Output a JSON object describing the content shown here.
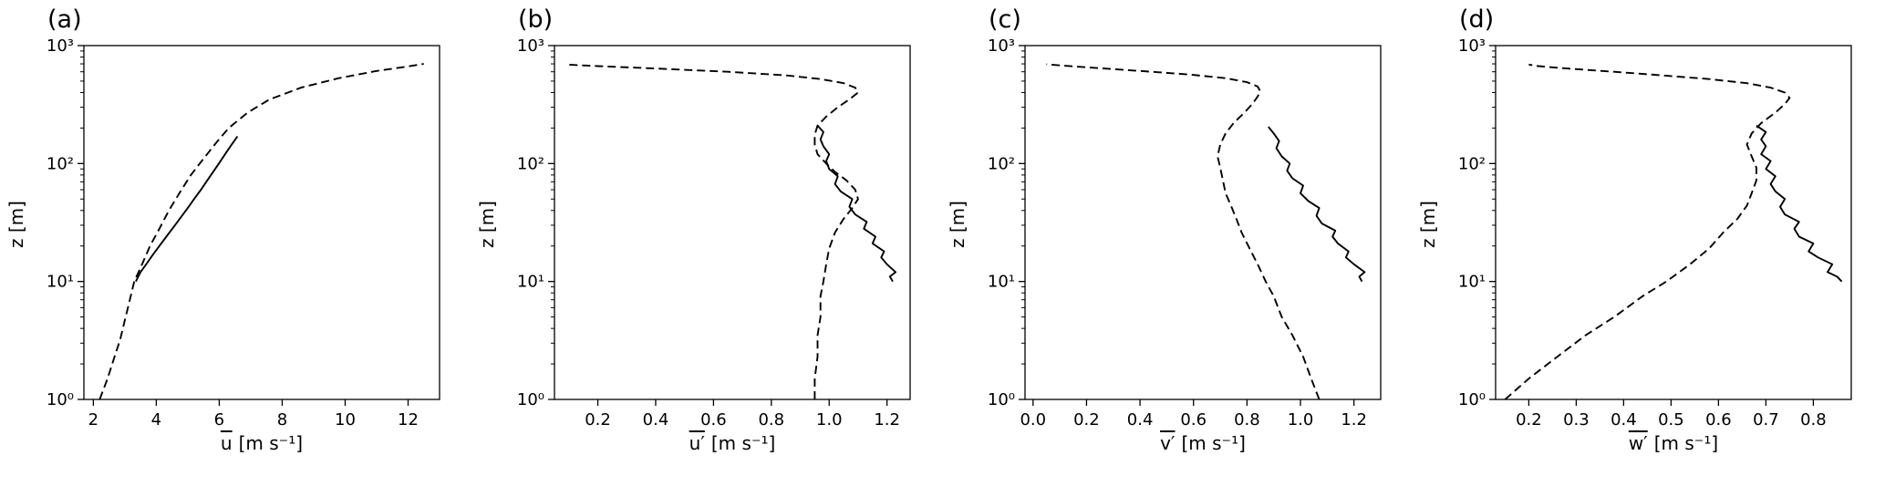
{
  "figure": {
    "background": "#ffffff",
    "line_color": "#000000",
    "description_series": [
      "dashed-profile",
      "solid-profile"
    ]
  },
  "chart_data": [
    {
      "type": "line",
      "panel_label": "(a)",
      "xlabel_var": "u",
      "xlabel_units": "[m s⁻¹]",
      "ylabel": "z [m]",
      "xlim": [
        1.7,
        13.0
      ],
      "ylog": true,
      "ylim": [
        1,
        1000
      ],
      "xticks": {
        "values": [
          2,
          4,
          6,
          8,
          10,
          12
        ],
        "labels": [
          "2",
          "4",
          "6",
          "8",
          "10",
          "12"
        ]
      },
      "yticks": {
        "values": [
          1,
          10,
          100,
          1000
        ],
        "labels": [
          "10⁰",
          "10¹",
          "10²",
          "10³"
        ]
      },
      "series": [
        {
          "name": "dashed-profile",
          "style": "dashed",
          "points": [
            [
              2.2,
              1
            ],
            [
              2.45,
              1.5
            ],
            [
              2.65,
              2.2
            ],
            [
              2.85,
              3.2
            ],
            [
              3.0,
              4.7
            ],
            [
              3.15,
              6.8
            ],
            [
              3.3,
              10
            ],
            [
              3.55,
              14
            ],
            [
              3.8,
              20
            ],
            [
              4.1,
              28
            ],
            [
              4.4,
              40
            ],
            [
              4.75,
              57
            ],
            [
              5.1,
              80
            ],
            [
              5.5,
              110
            ],
            [
              5.9,
              150
            ],
            [
              6.3,
              200
            ],
            [
              6.9,
              270
            ],
            [
              7.6,
              350
            ],
            [
              8.6,
              440
            ],
            [
              9.8,
              530
            ],
            [
              11.0,
              610
            ],
            [
              12.0,
              665
            ],
            [
              12.5,
              700
            ]
          ]
        },
        {
          "name": "solid-profile",
          "style": "solid",
          "points": [
            [
              3.35,
              10
            ],
            [
              3.5,
              12
            ],
            [
              3.68,
              14
            ],
            [
              3.9,
              17
            ],
            [
              4.1,
              20
            ],
            [
              4.32,
              24
            ],
            [
              4.55,
              29
            ],
            [
              4.78,
              35
            ],
            [
              5.0,
              42
            ],
            [
              5.2,
              50
            ],
            [
              5.42,
              60
            ],
            [
              5.62,
              72
            ],
            [
              5.82,
              86
            ],
            [
              6.02,
              103
            ],
            [
              6.22,
              124
            ],
            [
              6.42,
              148
            ],
            [
              6.58,
              170
            ]
          ]
        }
      ]
    },
    {
      "type": "line",
      "panel_label": "(b)",
      "xlabel_var": "u′",
      "xlabel_units": "[m s⁻¹]",
      "ylabel": "z [m]",
      "xlim": [
        0.05,
        1.28
      ],
      "ylog": true,
      "ylim": [
        1,
        1000
      ],
      "xticks": {
        "values": [
          0.2,
          0.4,
          0.6,
          0.8,
          1.0,
          1.2
        ],
        "labels": [
          "0.2",
          "0.4",
          "0.6",
          "0.8",
          "1.0",
          "1.2"
        ]
      },
      "yticks": {
        "values": [
          1,
          10,
          100,
          1000
        ],
        "labels": [
          "10⁰",
          "10¹",
          "10²",
          "10³"
        ]
      },
      "series": [
        {
          "name": "dashed-profile",
          "style": "dashed",
          "points": [
            [
              0.95,
              1
            ],
            [
              0.95,
              1.5
            ],
            [
              0.96,
              2.3
            ],
            [
              0.96,
              3.5
            ],
            [
              0.97,
              5
            ],
            [
              0.97,
              7.5
            ],
            [
              0.98,
              10
            ],
            [
              0.99,
              14
            ],
            [
              1.0,
              19
            ],
            [
              1.02,
              26
            ],
            [
              1.05,
              34
            ],
            [
              1.08,
              42
            ],
            [
              1.1,
              50
            ],
            [
              1.09,
              60
            ],
            [
              1.06,
              72
            ],
            [
              1.02,
              85
            ],
            [
              0.99,
              100
            ],
            [
              0.96,
              120
            ],
            [
              0.95,
              145
            ],
            [
              0.95,
              175
            ],
            [
              0.96,
              210
            ],
            [
              0.99,
              250
            ],
            [
              1.03,
              300
            ],
            [
              1.07,
              350
            ],
            [
              1.1,
              400
            ],
            [
              1.09,
              440
            ],
            [
              1.05,
              480
            ],
            [
              0.97,
              520
            ],
            [
              0.85,
              560
            ],
            [
              0.65,
              600
            ],
            [
              0.4,
              640
            ],
            [
              0.2,
              670
            ],
            [
              0.09,
              690
            ]
          ]
        },
        {
          "name": "solid-profile",
          "style": "solid",
          "points": [
            [
              1.22,
              10
            ],
            [
              1.21,
              11
            ],
            [
              1.23,
              12
            ],
            [
              1.2,
              14
            ],
            [
              1.18,
              16
            ],
            [
              1.19,
              18
            ],
            [
              1.15,
              21
            ],
            [
              1.16,
              24
            ],
            [
              1.12,
              28
            ],
            [
              1.13,
              32
            ],
            [
              1.09,
              37
            ],
            [
              1.07,
              43
            ],
            [
              1.08,
              50
            ],
            [
              1.04,
              58
            ],
            [
              1.02,
              67
            ],
            [
              1.03,
              78
            ],
            [
              1.0,
              90
            ],
            [
              0.99,
              105
            ],
            [
              1.0,
              120
            ],
            [
              0.98,
              140
            ],
            [
              0.97,
              160
            ],
            [
              0.98,
              185
            ],
            [
              0.96,
              210
            ]
          ]
        }
      ]
    },
    {
      "type": "line",
      "panel_label": "(c)",
      "xlabel_var": "v′",
      "xlabel_units": "[m s⁻¹]",
      "ylabel": "z [m]",
      "xlim": [
        -0.03,
        1.3
      ],
      "ylog": true,
      "ylim": [
        1,
        1000
      ],
      "xticks": {
        "values": [
          0.0,
          0.2,
          0.4,
          0.6,
          0.8,
          1.0,
          1.2
        ],
        "labels": [
          "0.0",
          "0.2",
          "0.4",
          "0.6",
          "0.8",
          "1.0",
          "1.2"
        ]
      },
      "yticks": {
        "values": [
          1,
          10,
          100,
          1000
        ],
        "labels": [
          "10⁰",
          "10¹",
          "10²",
          "10³"
        ]
      },
      "series": [
        {
          "name": "dashed-profile",
          "style": "dashed",
          "points": [
            [
              1.07,
              1
            ],
            [
              1.04,
              1.5
            ],
            [
              1.01,
              2.3
            ],
            [
              0.97,
              3.5
            ],
            [
              0.93,
              5
            ],
            [
              0.9,
              7.5
            ],
            [
              0.87,
              10
            ],
            [
              0.84,
              14
            ],
            [
              0.81,
              19
            ],
            [
              0.78,
              26
            ],
            [
              0.76,
              34
            ],
            [
              0.74,
              44
            ],
            [
              0.72,
              56
            ],
            [
              0.71,
              72
            ],
            [
              0.7,
              92
            ],
            [
              0.69,
              115
            ],
            [
              0.7,
              145
            ],
            [
              0.72,
              180
            ],
            [
              0.75,
              220
            ],
            [
              0.79,
              270
            ],
            [
              0.82,
              320
            ],
            [
              0.84,
              370
            ],
            [
              0.85,
              410
            ],
            [
              0.84,
              450
            ],
            [
              0.8,
              490
            ],
            [
              0.72,
              530
            ],
            [
              0.58,
              570
            ],
            [
              0.4,
              610
            ],
            [
              0.22,
              650
            ],
            [
              0.1,
              680
            ],
            [
              0.05,
              695
            ]
          ]
        },
        {
          "name": "solid-profile",
          "style": "solid",
          "points": [
            [
              1.23,
              10
            ],
            [
              1.22,
              11
            ],
            [
              1.24,
              12
            ],
            [
              1.2,
              14
            ],
            [
              1.17,
              16
            ],
            [
              1.18,
              18
            ],
            [
              1.14,
              21
            ],
            [
              1.12,
              24
            ],
            [
              1.13,
              27
            ],
            [
              1.08,
              31
            ],
            [
              1.06,
              36
            ],
            [
              1.07,
              42
            ],
            [
              1.03,
              48
            ],
            [
              1.0,
              56
            ],
            [
              1.01,
              65
            ],
            [
              0.97,
              75
            ],
            [
              0.95,
              87
            ],
            [
              0.96,
              100
            ],
            [
              0.93,
              115
            ],
            [
              0.91,
              135
            ],
            [
              0.92,
              155
            ],
            [
              0.9,
              180
            ],
            [
              0.88,
              205
            ]
          ]
        }
      ]
    },
    {
      "type": "line",
      "panel_label": "(d)",
      "xlabel_var": "w′",
      "xlabel_units": "[m s⁻¹]",
      "ylabel": "z [m]",
      "xlim": [
        0.13,
        0.88
      ],
      "ylog": true,
      "ylim": [
        1,
        1000
      ],
      "xticks": {
        "values": [
          0.2,
          0.3,
          0.4,
          0.5,
          0.6,
          0.7,
          0.8
        ],
        "labels": [
          "0.2",
          "0.3",
          "0.4",
          "0.5",
          "0.6",
          "0.7",
          "0.8"
        ]
      },
      "yticks": {
        "values": [
          1,
          10,
          100,
          1000
        ],
        "labels": [
          "10⁰",
          "10¹",
          "10²",
          "10³"
        ]
      },
      "series": [
        {
          "name": "dashed-profile",
          "style": "dashed",
          "points": [
            [
              0.15,
              1
            ],
            [
              0.2,
              1.5
            ],
            [
              0.26,
              2.3
            ],
            [
              0.32,
              3.5
            ],
            [
              0.38,
              5
            ],
            [
              0.44,
              7.5
            ],
            [
              0.49,
              10
            ],
            [
              0.54,
              14
            ],
            [
              0.58,
              19
            ],
            [
              0.61,
              26
            ],
            [
              0.64,
              34
            ],
            [
              0.66,
              44
            ],
            [
              0.67,
              56
            ],
            [
              0.68,
              72
            ],
            [
              0.68,
              92
            ],
            [
              0.67,
              115
            ],
            [
              0.66,
              145
            ],
            [
              0.67,
              180
            ],
            [
              0.69,
              220
            ],
            [
              0.72,
              270
            ],
            [
              0.74,
              320
            ],
            [
              0.75,
              360
            ],
            [
              0.74,
              400
            ],
            [
              0.71,
              440
            ],
            [
              0.66,
              480
            ],
            [
              0.58,
              520
            ],
            [
              0.48,
              560
            ],
            [
              0.38,
              600
            ],
            [
              0.28,
              640
            ],
            [
              0.22,
              670
            ],
            [
              0.2,
              690
            ]
          ]
        },
        {
          "name": "solid-profile",
          "style": "solid",
          "points": [
            [
              0.86,
              10
            ],
            [
              0.85,
              11
            ],
            [
              0.83,
              12
            ],
            [
              0.84,
              14
            ],
            [
              0.81,
              16
            ],
            [
              0.79,
              18
            ],
            [
              0.8,
              21
            ],
            [
              0.77,
              24
            ],
            [
              0.76,
              28
            ],
            [
              0.77,
              32
            ],
            [
              0.74,
              37
            ],
            [
              0.73,
              43
            ],
            [
              0.74,
              50
            ],
            [
              0.72,
              58
            ],
            [
              0.71,
              67
            ],
            [
              0.72,
              78
            ],
            [
              0.7,
              90
            ],
            [
              0.71,
              105
            ],
            [
              0.69,
              120
            ],
            [
              0.7,
              140
            ],
            [
              0.69,
              160
            ],
            [
              0.7,
              185
            ],
            [
              0.68,
              210
            ]
          ]
        }
      ]
    }
  ]
}
